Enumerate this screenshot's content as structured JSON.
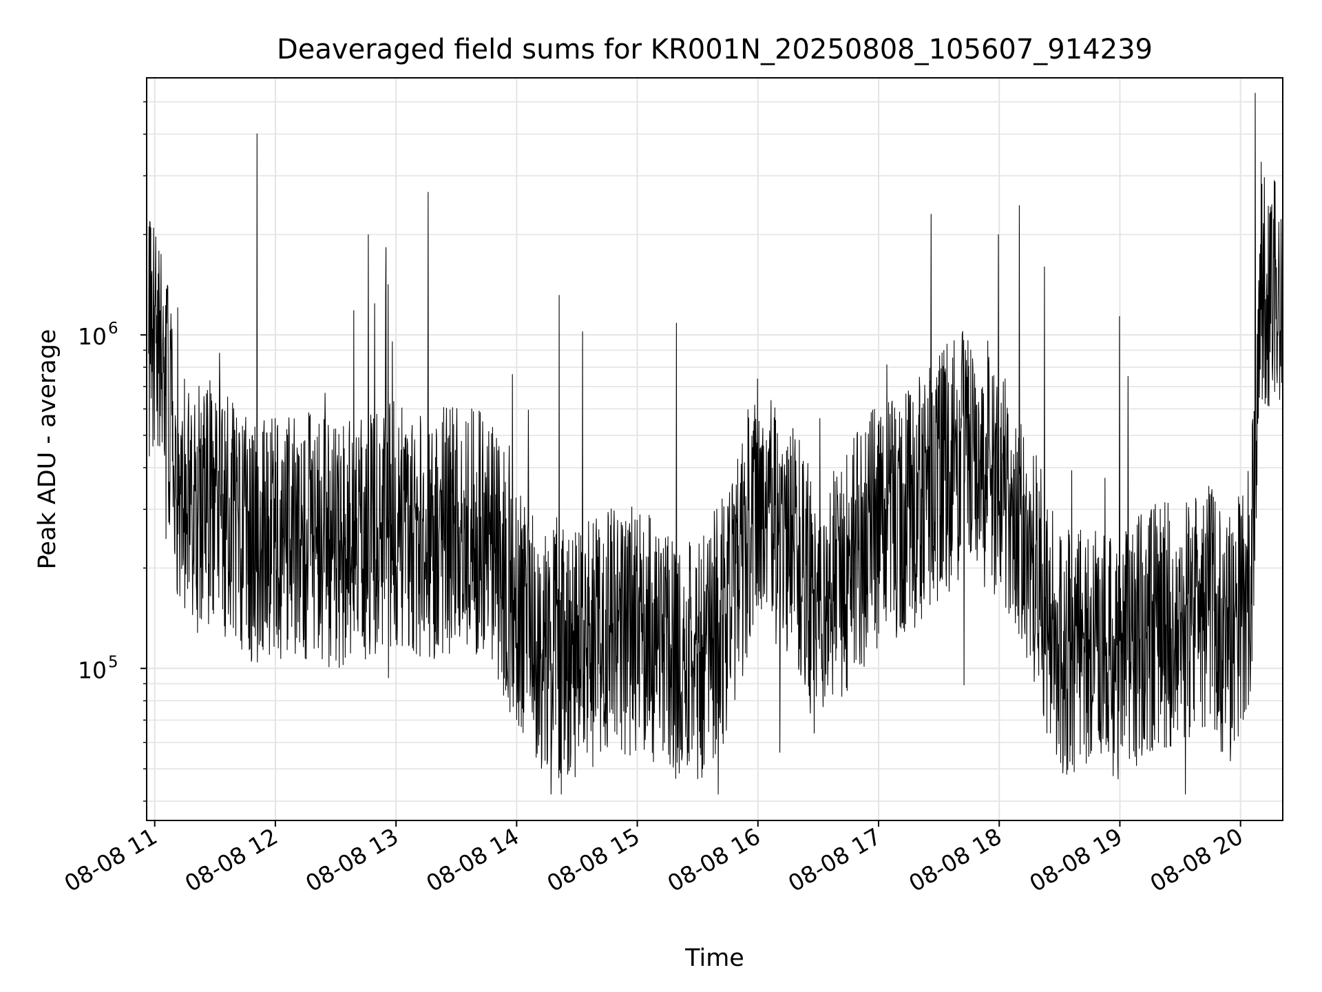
{
  "chart_data": {
    "type": "line",
    "title": "Deaveraged field sums for KR001N_20250808_105607_914239",
    "xlabel": "Time",
    "ylabel": "Peak ADU - average",
    "yscale": "log",
    "ylim": [
      35000,
      5900000
    ],
    "xlim": [
      "2025-08-08 10:56",
      "2025-08-08 20:21"
    ],
    "grid": true,
    "legend": "none",
    "x_ticks": [
      "08-08 11",
      "08-08 12",
      "08-08 13",
      "08-08 14",
      "08-08 15",
      "08-08 16",
      "08-08 17",
      "08-08 18",
      "08-08 19",
      "08-08 20"
    ],
    "y_ticks": [
      {
        "value": 100000,
        "base": "10",
        "exp": "5"
      },
      {
        "value": 1000000,
        "base": "10",
        "exp": "6"
      }
    ],
    "series": [
      {
        "color": "#000000",
        "x": [
          "2025-08-08 10:57",
          "2025-08-08 11:00",
          "2025-08-08 11:05",
          "2025-08-08 11:10",
          "2025-08-08 11:20",
          "2025-08-08 11:30",
          "2025-08-08 11:45",
          "2025-08-08 12:00",
          "2025-08-08 12:15",
          "2025-08-08 12:30",
          "2025-08-08 12:45",
          "2025-08-08 13:00",
          "2025-08-08 13:15",
          "2025-08-08 13:30",
          "2025-08-08 13:45",
          "2025-08-08 14:00",
          "2025-08-08 14:15",
          "2025-08-08 14:30",
          "2025-08-08 14:45",
          "2025-08-08 15:00",
          "2025-08-08 15:15",
          "2025-08-08 15:30",
          "2025-08-08 15:45",
          "2025-08-08 16:00",
          "2025-08-08 16:15",
          "2025-08-08 16:30",
          "2025-08-08 16:45",
          "2025-08-08 17:00",
          "2025-08-08 17:15",
          "2025-08-08 17:30",
          "2025-08-08 17:45",
          "2025-08-08 18:00",
          "2025-08-08 18:15",
          "2025-08-08 18:30",
          "2025-08-08 18:45",
          "2025-08-08 19:00",
          "2025-08-08 19:15",
          "2025-08-08 19:30",
          "2025-08-08 19:45",
          "2025-08-08 19:55",
          "2025-08-08 20:05",
          "2025-08-08 20:10",
          "2025-08-08 20:20"
        ],
        "y": [
          900000,
          1100000,
          800000,
          400000,
          300000,
          320000,
          250000,
          240000,
          250000,
          230000,
          250000,
          270000,
          250000,
          260000,
          260000,
          150000,
          110000,
          110000,
          130000,
          130000,
          110000,
          100000,
          150000,
          330000,
          250000,
          150000,
          200000,
          270000,
          300000,
          380000,
          450000,
          380000,
          220000,
          110000,
          110000,
          110000,
          130000,
          140000,
          150000,
          120000,
          180000,
          1400000,
          1500000
        ]
      }
    ]
  }
}
